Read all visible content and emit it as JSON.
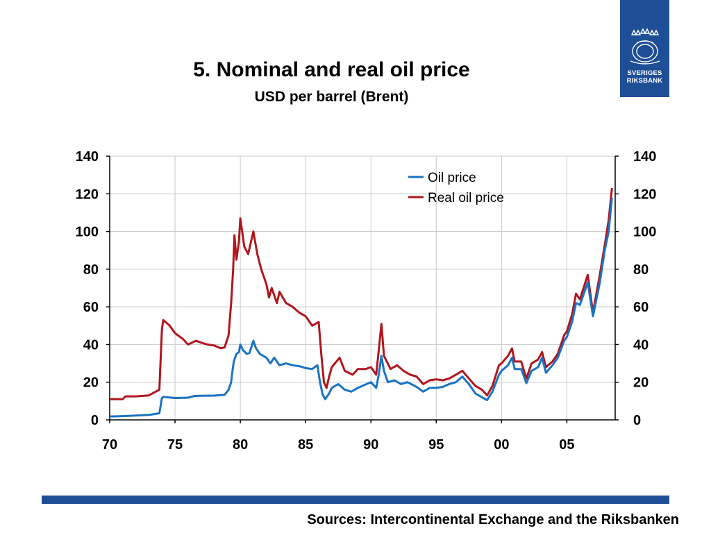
{
  "logo": {
    "line1": "SVERIGES",
    "line2": "RIKSBANK",
    "background": "#1e4f96"
  },
  "header": {
    "title": "5. Nominal and real oil price",
    "subtitle": "USD per barrel (Brent)"
  },
  "footer": {
    "source": "Sources: Intercontinental Exchange and the Riksbanken",
    "bar_color": "#1e4f96"
  },
  "chart_data": {
    "type": "line",
    "title": "5. Nominal and real oil price",
    "subtitle": "USD per barrel (Brent)",
    "xlabel": "",
    "ylabel": "",
    "xlim": [
      1970,
      2008.7
    ],
    "ylim": [
      0,
      140
    ],
    "x_ticks": [
      1970,
      1975,
      1980,
      1985,
      1990,
      1995,
      2000,
      2005
    ],
    "x_tick_labels": [
      "70",
      "75",
      "80",
      "85",
      "90",
      "95",
      "00",
      "05"
    ],
    "y_ticks": [
      0,
      20,
      40,
      60,
      80,
      100,
      120,
      140
    ],
    "y_tick_labels": [
      "0",
      "20",
      "40",
      "60",
      "80",
      "100",
      "120",
      "140"
    ],
    "secondary_y_axis": true,
    "grid": true,
    "legend_position": "top-right",
    "series": [
      {
        "name": "Oil price",
        "color": "#1a73c2",
        "points": [
          [
            1970.0,
            1.8
          ],
          [
            1971.0,
            2.0
          ],
          [
            1972.0,
            2.3
          ],
          [
            1973.0,
            2.6
          ],
          [
            1973.8,
            3.5
          ],
          [
            1974.0,
            11.5
          ],
          [
            1974.1,
            12.2
          ],
          [
            1975.0,
            11.6
          ],
          [
            1976.0,
            11.8
          ],
          [
            1976.5,
            12.7
          ],
          [
            1977.0,
            12.8
          ],
          [
            1978.0,
            12.9
          ],
          [
            1978.8,
            13.3
          ],
          [
            1979.1,
            16.0
          ],
          [
            1979.3,
            20.0
          ],
          [
            1979.4,
            26.0
          ],
          [
            1979.5,
            31.0
          ],
          [
            1979.7,
            35.0
          ],
          [
            1979.9,
            36.0
          ],
          [
            1980.0,
            40.0
          ],
          [
            1980.2,
            37.0
          ],
          [
            1980.5,
            35.0
          ],
          [
            1980.7,
            35.5
          ],
          [
            1981.0,
            42.0
          ],
          [
            1981.2,
            38.0
          ],
          [
            1981.5,
            35.0
          ],
          [
            1982.0,
            33.0
          ],
          [
            1982.3,
            30.0
          ],
          [
            1982.6,
            33.0
          ],
          [
            1983.0,
            29.0
          ],
          [
            1983.5,
            30.0
          ],
          [
            1984.0,
            29.0
          ],
          [
            1984.5,
            28.5
          ],
          [
            1985.0,
            27.5
          ],
          [
            1985.5,
            27.0
          ],
          [
            1985.9,
            29.0
          ],
          [
            1986.1,
            20.0
          ],
          [
            1986.3,
            13.5
          ],
          [
            1986.5,
            11.0
          ],
          [
            1986.8,
            14.0
          ],
          [
            1987.0,
            17.0
          ],
          [
            1987.5,
            19.0
          ],
          [
            1988.0,
            16.0
          ],
          [
            1988.5,
            15.0
          ],
          [
            1989.0,
            17.0
          ],
          [
            1989.5,
            18.5
          ],
          [
            1990.0,
            20.0
          ],
          [
            1990.4,
            17.0
          ],
          [
            1990.6,
            24.0
          ],
          [
            1990.8,
            34.0
          ],
          [
            1991.0,
            26.0
          ],
          [
            1991.3,
            20.0
          ],
          [
            1991.8,
            21.0
          ],
          [
            1992.3,
            19.0
          ],
          [
            1992.8,
            20.0
          ],
          [
            1993.5,
            17.5
          ],
          [
            1994.0,
            15.0
          ],
          [
            1994.5,
            17.0
          ],
          [
            1995.0,
            17.0
          ],
          [
            1995.5,
            17.5
          ],
          [
            1996.0,
            19.0
          ],
          [
            1996.5,
            20.0
          ],
          [
            1997.0,
            23.0
          ],
          [
            1997.5,
            19.0
          ],
          [
            1998.0,
            14.0
          ],
          [
            1998.5,
            12.0
          ],
          [
            1998.9,
            10.5
          ],
          [
            1999.3,
            15.0
          ],
          [
            1999.8,
            24.0
          ],
          [
            2000.0,
            26.0
          ],
          [
            2000.5,
            29.0
          ],
          [
            2000.8,
            33.0
          ],
          [
            2001.0,
            27.0
          ],
          [
            2001.5,
            27.0
          ],
          [
            2001.9,
            19.5
          ],
          [
            2002.3,
            26.0
          ],
          [
            2002.8,
            28.0
          ],
          [
            2003.1,
            33.0
          ],
          [
            2003.4,
            25.0
          ],
          [
            2003.9,
            29.0
          ],
          [
            2004.3,
            33.0
          ],
          [
            2004.8,
            42.0
          ],
          [
            2005.0,
            44.0
          ],
          [
            2005.4,
            52.0
          ],
          [
            2005.7,
            62.0
          ],
          [
            2006.0,
            61.0
          ],
          [
            2006.6,
            73.0
          ],
          [
            2007.0,
            55.0
          ],
          [
            2007.5,
            72.0
          ],
          [
            2007.9,
            90.0
          ],
          [
            2008.2,
            100.0
          ],
          [
            2008.45,
            118.0
          ]
        ]
      },
      {
        "name": "Real oil price",
        "color": "#b0151d",
        "points": [
          [
            1970.0,
            11.0
          ],
          [
            1971.0,
            11.0
          ],
          [
            1971.2,
            12.5
          ],
          [
            1972.0,
            12.5
          ],
          [
            1973.0,
            13.0
          ],
          [
            1973.8,
            16.0
          ],
          [
            1974.0,
            48.0
          ],
          [
            1974.1,
            53.0
          ],
          [
            1974.6,
            50.0
          ],
          [
            1975.0,
            46.0
          ],
          [
            1975.6,
            43.0
          ],
          [
            1976.0,
            40.0
          ],
          [
            1976.6,
            42.0
          ],
          [
            1977.0,
            41.0
          ],
          [
            1977.5,
            40.0
          ],
          [
            1978.0,
            39.5
          ],
          [
            1978.5,
            38.0
          ],
          [
            1978.8,
            38.5
          ],
          [
            1979.1,
            45.0
          ],
          [
            1979.3,
            62.0
          ],
          [
            1979.45,
            80.0
          ],
          [
            1979.55,
            98.0
          ],
          [
            1979.7,
            85.0
          ],
          [
            1979.9,
            95.0
          ],
          [
            1980.0,
            107.0
          ],
          [
            1980.3,
            92.0
          ],
          [
            1980.6,
            88.0
          ],
          [
            1981.0,
            100.0
          ],
          [
            1981.3,
            88.0
          ],
          [
            1981.6,
            80.0
          ],
          [
            1982.0,
            72.0
          ],
          [
            1982.2,
            65.0
          ],
          [
            1982.4,
            70.0
          ],
          [
            1982.8,
            62.0
          ],
          [
            1983.0,
            68.0
          ],
          [
            1983.5,
            62.0
          ],
          [
            1984.0,
            60.0
          ],
          [
            1984.5,
            57.0
          ],
          [
            1985.0,
            55.0
          ],
          [
            1985.5,
            50.0
          ],
          [
            1986.0,
            52.0
          ],
          [
            1986.2,
            35.0
          ],
          [
            1986.4,
            20.0
          ],
          [
            1986.6,
            17.0
          ],
          [
            1986.8,
            23.0
          ],
          [
            1987.0,
            28.0
          ],
          [
            1987.6,
            33.0
          ],
          [
            1988.0,
            26.0
          ],
          [
            1988.6,
            24.0
          ],
          [
            1989.0,
            27.0
          ],
          [
            1989.6,
            27.0
          ],
          [
            1990.0,
            28.0
          ],
          [
            1990.4,
            24.0
          ],
          [
            1990.6,
            37.0
          ],
          [
            1990.8,
            51.0
          ],
          [
            1991.0,
            34.0
          ],
          [
            1991.5,
            27.0
          ],
          [
            1992.0,
            29.0
          ],
          [
            1992.5,
            26.0
          ],
          [
            1993.0,
            24.0
          ],
          [
            1993.5,
            23.0
          ],
          [
            1994.0,
            19.0
          ],
          [
            1994.5,
            21.0
          ],
          [
            1995.0,
            21.5
          ],
          [
            1995.5,
            21.0
          ],
          [
            1996.0,
            22.0
          ],
          [
            1996.5,
            24.0
          ],
          [
            1997.0,
            26.0
          ],
          [
            1997.5,
            22.0
          ],
          [
            1998.0,
            18.0
          ],
          [
            1998.5,
            16.0
          ],
          [
            1998.9,
            13.0
          ],
          [
            1999.3,
            18.0
          ],
          [
            1999.8,
            29.0
          ],
          [
            2000.0,
            30.0
          ],
          [
            2000.5,
            34.0
          ],
          [
            2000.8,
            38.0
          ],
          [
            2001.0,
            31.0
          ],
          [
            2001.5,
            31.0
          ],
          [
            2001.9,
            22.0
          ],
          [
            2002.3,
            30.0
          ],
          [
            2002.8,
            32.0
          ],
          [
            2003.1,
            36.0
          ],
          [
            2003.4,
            28.0
          ],
          [
            2003.9,
            31.0
          ],
          [
            2004.3,
            35.0
          ],
          [
            2004.8,
            45.0
          ],
          [
            2005.0,
            47.0
          ],
          [
            2005.4,
            56.0
          ],
          [
            2005.7,
            67.0
          ],
          [
            2006.0,
            64.0
          ],
          [
            2006.6,
            77.0
          ],
          [
            2007.0,
            57.0
          ],
          [
            2007.5,
            76.0
          ],
          [
            2007.9,
            93.0
          ],
          [
            2008.2,
            106.0
          ],
          [
            2008.45,
            123.0
          ]
        ]
      }
    ]
  }
}
